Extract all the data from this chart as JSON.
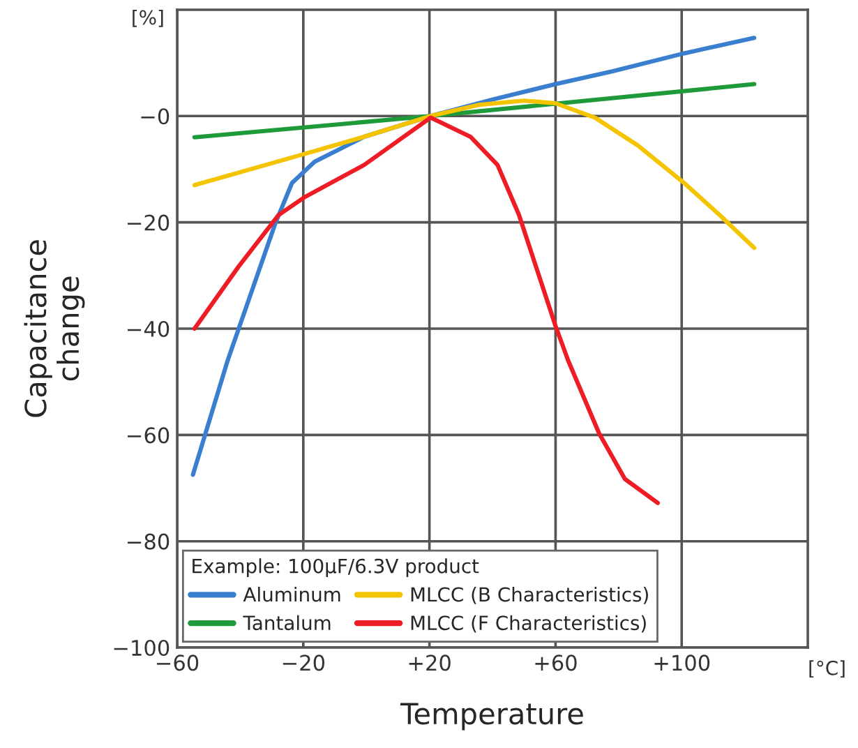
{
  "chart_data": {
    "type": "line",
    "xlabel": "Temperature",
    "ylabel": "Capacitance\nchange",
    "legend_title": "Example: 100µF/6.3V product",
    "annotations": [
      "[%]",
      "[°C]"
    ],
    "xlim": [
      -60,
      140
    ],
    "xticks": [
      {
        "value": -60,
        "label": "−60"
      },
      {
        "value": -20,
        "label": "−20"
      },
      {
        "value": 20,
        "label": "+20"
      },
      {
        "value": 60,
        "label": "+60"
      },
      {
        "value": 100,
        "label": "+100"
      }
    ],
    "ylim": [
      -100,
      20
    ],
    "yticks": [
      {
        "value": -100,
        "label": "−100"
      },
      {
        "value": -80,
        "label": "−80"
      },
      {
        "value": -60,
        "label": "−60"
      },
      {
        "value": -40,
        "label": "−40"
      },
      {
        "value": -20,
        "label": "−20"
      },
      {
        "value": 0,
        "label": "−0"
      }
    ],
    "grid": true,
    "legend": "bottom left",
    "marker": "none",
    "line_style": "solid",
    "series": [
      {
        "name": "Aluminum",
        "color": "#3a7fcf",
        "x": [
          -55,
          -44,
          -29,
          -23.6,
          -16.4,
          -0.7,
          20.4,
          40,
          60,
          78,
          100.8,
          123
        ],
        "values": [
          -67.5,
          -46,
          -20.4,
          -12.6,
          -8.6,
          -3.9,
          0,
          3.1,
          6,
          8.4,
          11.8,
          14.7
        ]
      },
      {
        "name": "Tantalum",
        "color": "#1e9a3a",
        "x": [
          -54.5,
          20.4,
          123
        ],
        "values": [
          -4,
          0,
          6
        ]
      },
      {
        "name": "MLCC (B Characteristics)",
        "color": "#f5c400",
        "x": [
          -54.5,
          -20.6,
          -0.7,
          20.4,
          35.7,
          50,
          60,
          72.5,
          86,
          100.8,
          112,
          123
        ],
        "values": [
          -13,
          -7.3,
          -3.9,
          0,
          2.1,
          2.9,
          2.4,
          -0.3,
          -5.5,
          -12.6,
          -18.6,
          -24.8
        ]
      },
      {
        "name": "MLCC (F Characteristics)",
        "color": "#ee1c25",
        "x": [
          -54.5,
          -40.5,
          -27.8,
          -19.4,
          -0.7,
          20.4,
          33,
          41.6,
          48.4,
          60,
          64,
          73.8,
          82,
          92.4
        ],
        "values": [
          -40,
          -28.3,
          -18.6,
          -15.2,
          -9.2,
          -0.3,
          -3.9,
          -9.2,
          -18.6,
          -39.5,
          -46,
          -59.7,
          -68.3,
          -72.8
        ]
      }
    ]
  }
}
